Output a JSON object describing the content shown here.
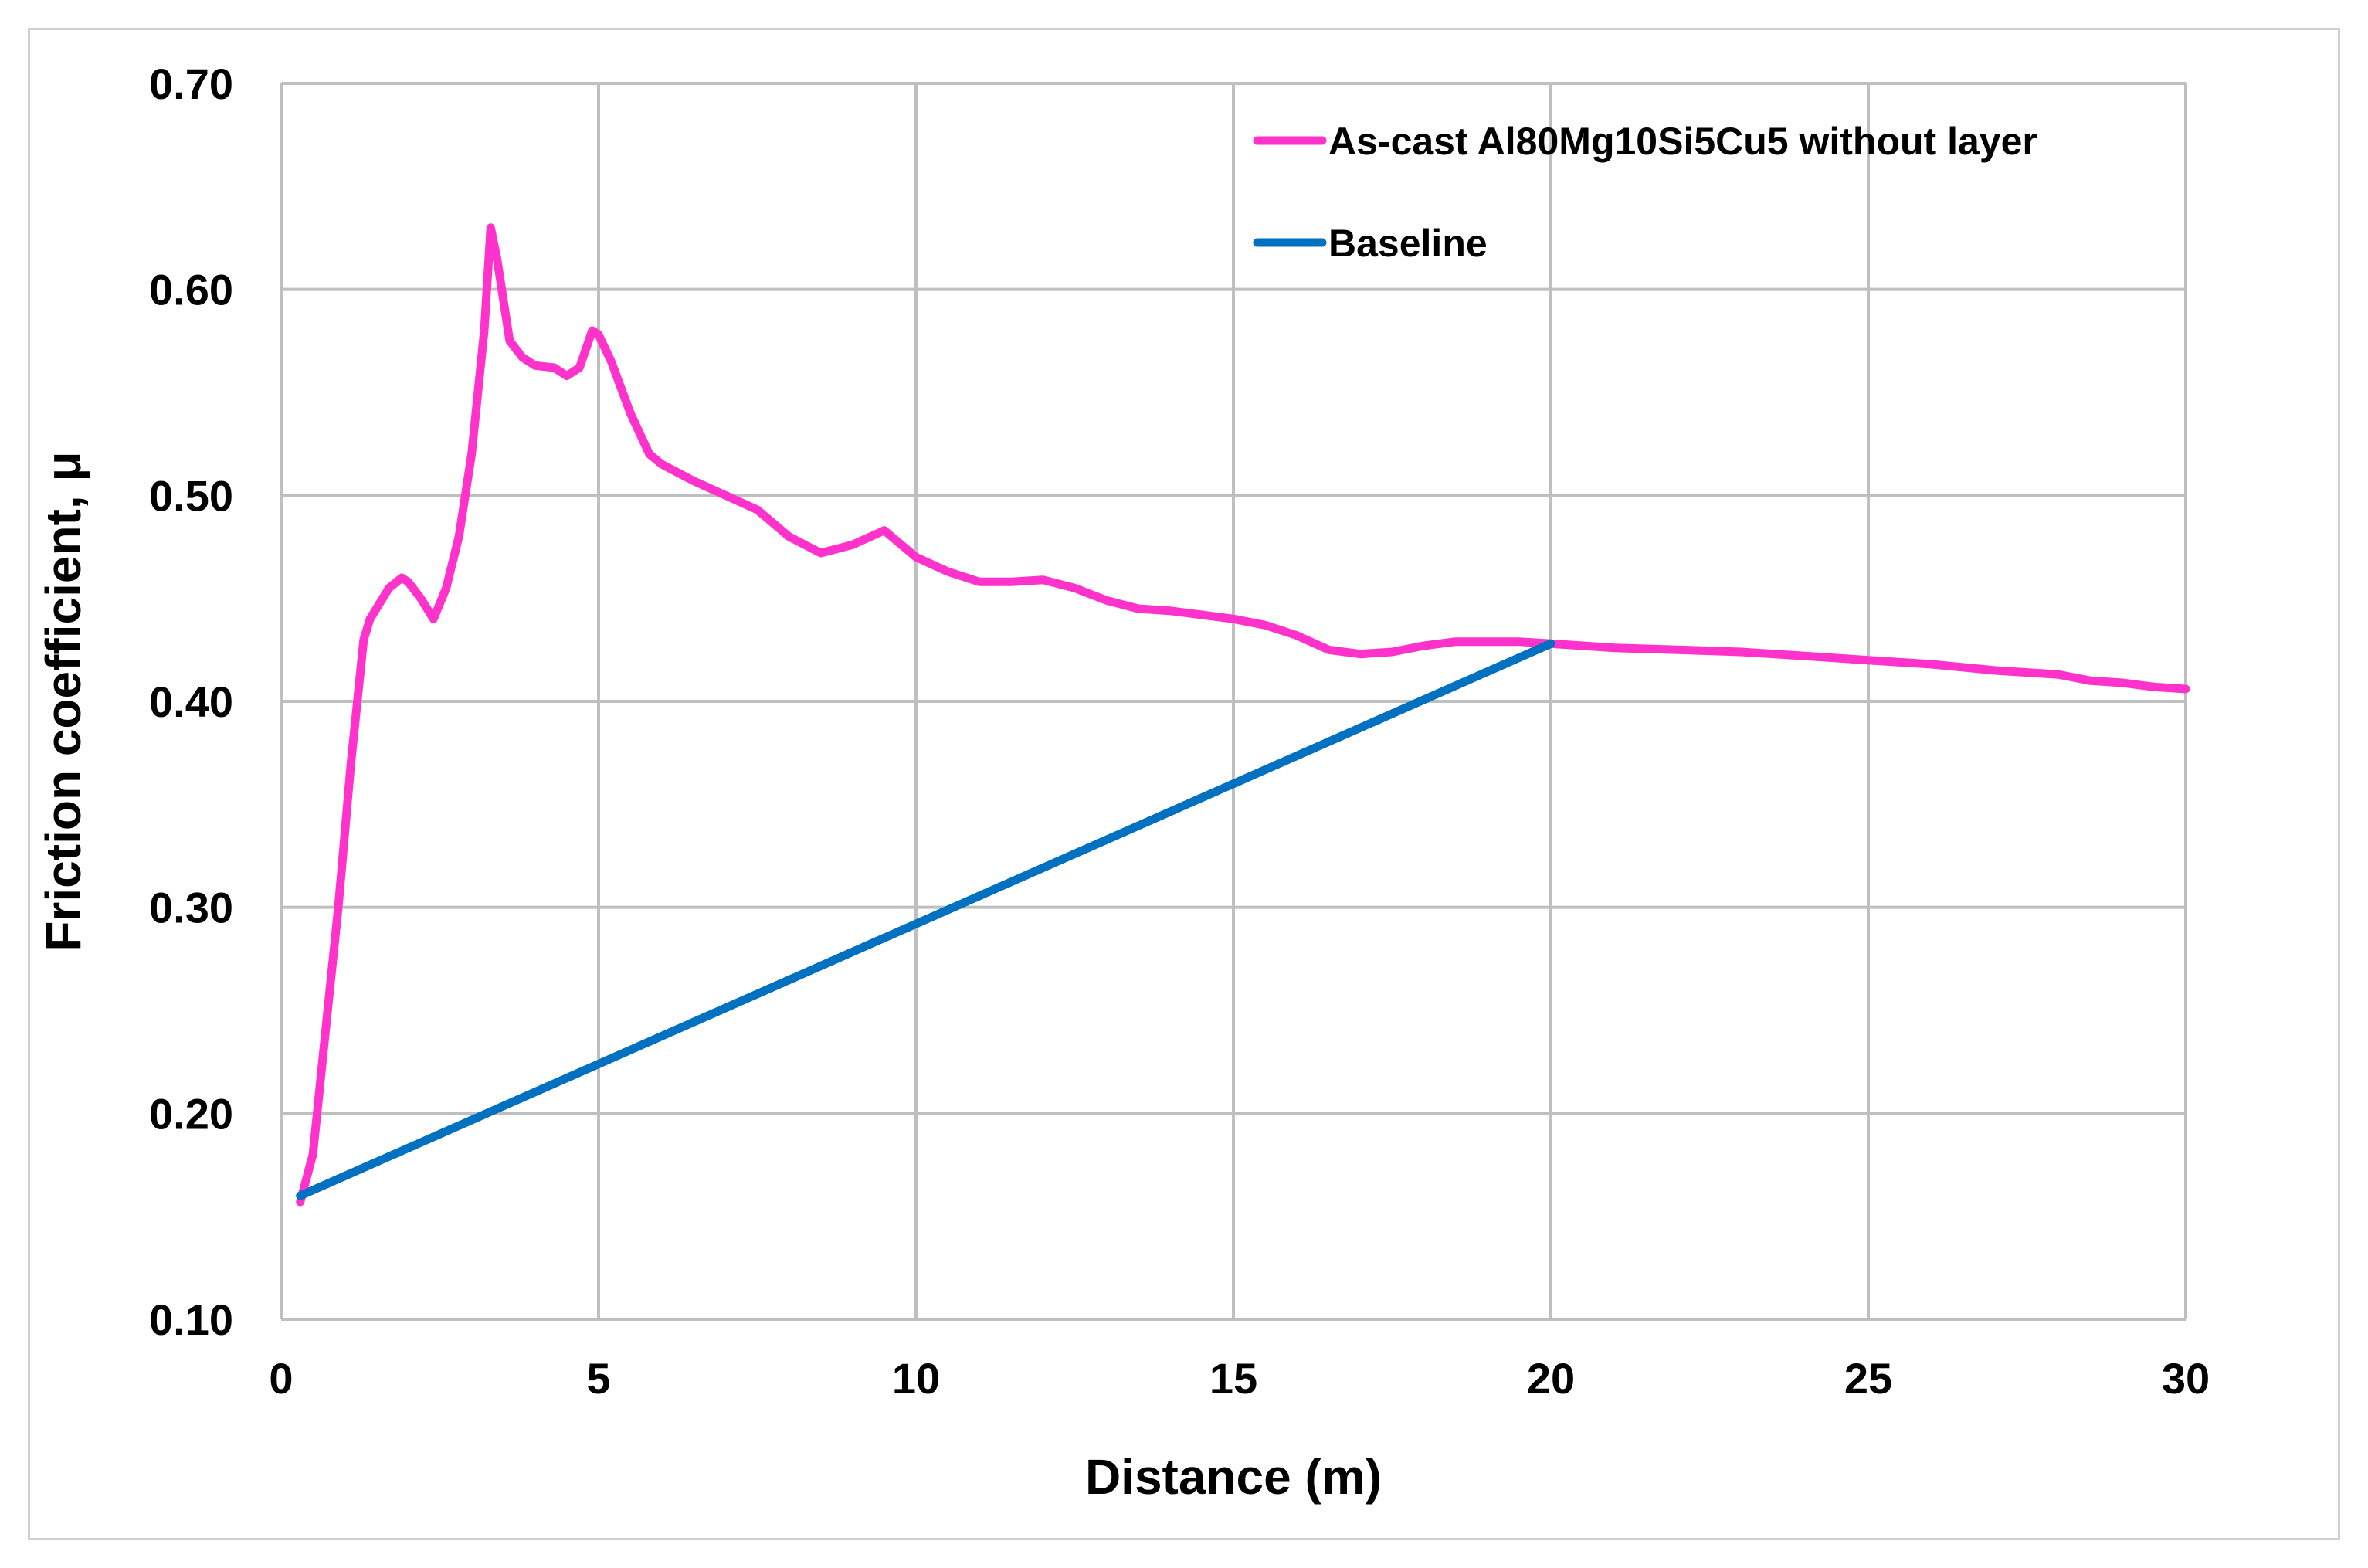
{
  "chart_data": {
    "type": "line",
    "title": "",
    "xlabel": "Distance (m)",
    "ylabel": "Friction coefficient, μ",
    "xlim": [
      0,
      30
    ],
    "ylim": [
      0.1,
      0.7
    ],
    "x_ticks": [
      0,
      5,
      10,
      15,
      20,
      25,
      30
    ],
    "x_tick_labels": [
      "0",
      "5",
      "10",
      "15",
      "20",
      "25",
      "30"
    ],
    "y_ticks": [
      0.1,
      0.2,
      0.3,
      0.4,
      0.5,
      0.6,
      0.7
    ],
    "y_tick_labels": [
      "0.10",
      "0.20",
      "0.30",
      "0.40",
      "0.50",
      "0.60",
      "0.70"
    ],
    "grid": true,
    "legend_position": "top-right",
    "series": [
      {
        "name": "As-cast Al80Mg10Si5Cu5 without layer",
        "color": "#ff33cc",
        "x": [
          0.3,
          0.5,
          0.7,
          0.9,
          1.1,
          1.3,
          1.4,
          1.5,
          1.7,
          1.9,
          2.0,
          2.2,
          2.4,
          2.6,
          2.8,
          3.0,
          3.2,
          3.3,
          3.4,
          3.6,
          3.8,
          4.0,
          4.3,
          4.5,
          4.7,
          4.9,
          5.0,
          5.2,
          5.5,
          5.8,
          6.0,
          6.5,
          7.0,
          7.5,
          8.0,
          8.5,
          9.0,
          9.5,
          10.0,
          10.5,
          11.0,
          11.5,
          12.0,
          12.5,
          13.0,
          13.5,
          14.0,
          14.5,
          15.0,
          15.5,
          16.0,
          16.5,
          17.0,
          17.5,
          18.0,
          18.5,
          19.0,
          19.5,
          20.0,
          20.5,
          21.0,
          22.0,
          23.0,
          24.0,
          25.0,
          26.0,
          27.0,
          28.0,
          28.5,
          29.0,
          29.5,
          30.0
        ],
        "values": [
          0.157,
          0.18,
          0.24,
          0.3,
          0.37,
          0.43,
          0.44,
          0.445,
          0.455,
          0.46,
          0.458,
          0.45,
          0.44,
          0.455,
          0.48,
          0.52,
          0.58,
          0.63,
          0.615,
          0.575,
          0.567,
          0.563,
          0.562,
          0.558,
          0.562,
          0.58,
          0.578,
          0.565,
          0.54,
          0.52,
          0.515,
          0.507,
          0.5,
          0.493,
          0.48,
          0.472,
          0.476,
          0.483,
          0.47,
          0.463,
          0.458,
          0.458,
          0.459,
          0.455,
          0.449,
          0.445,
          0.444,
          0.442,
          0.44,
          0.437,
          0.432,
          0.425,
          0.423,
          0.424,
          0.427,
          0.429,
          0.429,
          0.429,
          0.428,
          0.427,
          0.426,
          0.425,
          0.424,
          0.422,
          0.42,
          0.418,
          0.415,
          0.413,
          0.41,
          0.409,
          0.407,
          0.406
        ]
      },
      {
        "name": "Baseline",
        "color": "#0070c0",
        "x": [
          0.3,
          20.0
        ],
        "values": [
          0.16,
          0.428
        ]
      }
    ]
  }
}
